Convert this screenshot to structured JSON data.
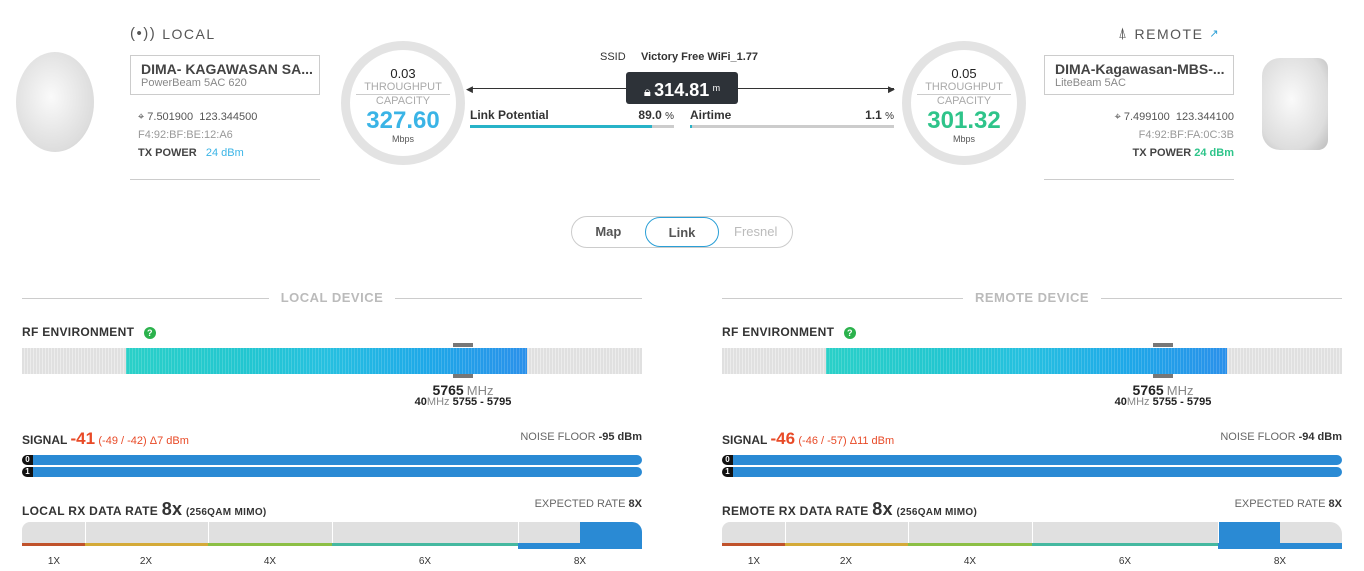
{
  "local": {
    "header": "LOCAL",
    "icon": "antenna-signal-icon",
    "name": "DIMA- KAGAWASAN SA...",
    "model": "PowerBeam 5AC 620",
    "lat": "7.501900",
    "lon": "123.344500",
    "mac": "F4:92:BF:BE:12:A6",
    "tx_label": "TX POWER",
    "tx_value": "24 dBm",
    "throughput": "0.03",
    "throughput_label": "THROUGHPUT",
    "capacity_label": "CAPACITY",
    "capacity": "327.60",
    "unit": "Mbps",
    "color": "#3ab4e6"
  },
  "remote": {
    "header": "REMOTE",
    "icon": "tower-icon",
    "name": "DIMA-Kagawasan-MBS-...",
    "model": "LiteBeam 5AC",
    "lat": "7.499100",
    "lon": "123.344100",
    "mac": "F4:92:BF:FA:0C:3B",
    "tx_label": "TX POWER",
    "tx_value": "24 dBm",
    "throughput": "0.05",
    "throughput_label": "THROUGHPUT",
    "capacity_label": "CAPACITY",
    "capacity": "301.32",
    "unit": "Mbps",
    "color": "#2ec48a"
  },
  "link": {
    "ssid_label": "SSID",
    "ssid": "Victory Free WiFi_1.77",
    "distance": "314.81",
    "distance_unit": "m",
    "potential_label": "Link Potential",
    "potential": "89.0",
    "potential_pct": 89.0,
    "airtime_label": "Airtime",
    "airtime": "1.1",
    "airtime_pct": 1.1,
    "pct": "%"
  },
  "tabs": [
    "Map",
    "Link",
    "Fresnel"
  ],
  "panels": [
    {
      "title": "LOCAL DEVICE",
      "rf_label": "RF ENVIRONMENT",
      "freq": "5765",
      "mhz": "MHz",
      "width": "40",
      "range": "5755 - 5795",
      "signal_label": "SIGNAL",
      "signal": "-41",
      "signal_detail": "(-49 / -42) Δ7 dBm",
      "noise_label": "NOISE FLOOR",
      "noise": "-95 dBm",
      "chains": [
        "0",
        "1"
      ],
      "rate_label": "LOCAL RX DATA RATE",
      "rate": "8x",
      "rate_mod": "(256QAM MIMO)",
      "expected_label": "EXPECTED RATE",
      "expected": "8X"
    },
    {
      "title": "REMOTE DEVICE",
      "rf_label": "RF ENVIRONMENT",
      "freq": "5765",
      "mhz": "MHz",
      "width": "40",
      "range": "5755 - 5795",
      "signal_label": "SIGNAL",
      "signal": "-46",
      "signal_detail": "(-46 / -57) Δ11 dBm",
      "noise_label": "NOISE FLOOR",
      "noise": "-94 dBm",
      "chains": [
        "0",
        "1"
      ],
      "rate_label": "REMOTE RX DATA RATE",
      "rate": "8x",
      "rate_mod": "(256QAM MIMO)",
      "expected_label": "EXPECTED RATE",
      "expected": "8X"
    }
  ],
  "rate_scale": [
    "1X",
    "2X",
    "4X",
    "6X",
    "8X"
  ]
}
